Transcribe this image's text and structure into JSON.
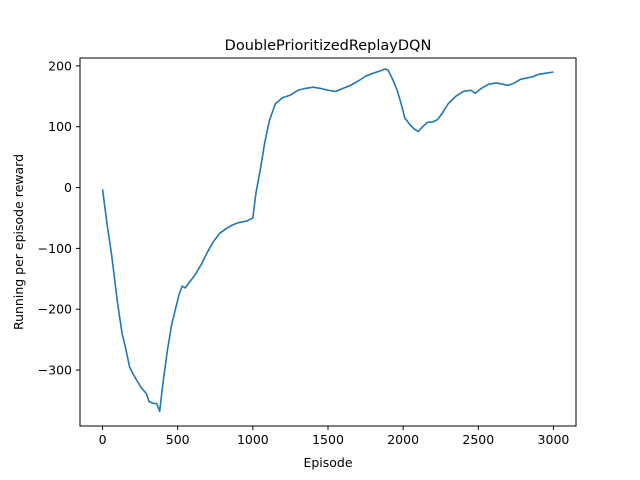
{
  "chart_data": {
    "type": "line",
    "title": "DoublePrioritizedReplayDQN",
    "xlabel": "Episode",
    "ylabel": "Running per episode reward",
    "xlim": [
      -150,
      3150
    ],
    "ylim": [
      -392,
      213
    ],
    "xticks": [
      0,
      500,
      1000,
      1500,
      2000,
      2500,
      3000
    ],
    "yticks": [
      -300,
      -200,
      -100,
      0,
      100,
      200
    ],
    "xtick_labels": [
      "0",
      "500",
      "1000",
      "1500",
      "2000",
      "2500",
      "3000"
    ],
    "ytick_labels": [
      "−300",
      "−200",
      "−100",
      "0",
      "100",
      "200"
    ],
    "grid": false,
    "legend": null,
    "series": [
      {
        "color": "#1f77b4",
        "x": [
          0,
          30,
          60,
          100,
          130,
          150,
          180,
          200,
          230,
          260,
          290,
          310,
          340,
          360,
          380,
          400,
          430,
          460,
          490,
          510,
          530,
          550,
          580,
          620,
          660,
          700,
          740,
          780,
          820,
          860,
          900,
          960,
          1000,
          1020,
          1050,
          1080,
          1110,
          1150,
          1200,
          1250,
          1300,
          1350,
          1400,
          1450,
          1500,
          1550,
          1600,
          1650,
          1700,
          1750,
          1800,
          1850,
          1880,
          1900,
          1930,
          1960,
          1990,
          2010,
          2040,
          2070,
          2100,
          2130,
          2160,
          2200,
          2230,
          2260,
          2300,
          2350,
          2400,
          2450,
          2480,
          2520,
          2570,
          2620,
          2660,
          2700,
          2740,
          2780,
          2820,
          2860,
          2900,
          2950,
          3000
        ],
        "y": [
          -3,
          -60,
          -110,
          -190,
          -240,
          -260,
          -295,
          -305,
          -318,
          -330,
          -338,
          -352,
          -355,
          -355,
          -368,
          -325,
          -270,
          -225,
          -195,
          -175,
          -162,
          -165,
          -155,
          -142,
          -125,
          -105,
          -88,
          -75,
          -68,
          -62,
          -58,
          -55,
          -50,
          -10,
          30,
          75,
          110,
          138,
          148,
          152,
          160,
          163,
          165,
          163,
          160,
          158,
          163,
          168,
          175,
          183,
          188,
          192,
          195,
          193,
          178,
          160,
          135,
          115,
          105,
          97,
          92,
          100,
          107,
          108,
          112,
          122,
          138,
          150,
          158,
          160,
          155,
          163,
          170,
          172,
          170,
          168,
          172,
          178,
          180,
          182,
          186,
          188,
          190
        ]
      }
    ]
  }
}
